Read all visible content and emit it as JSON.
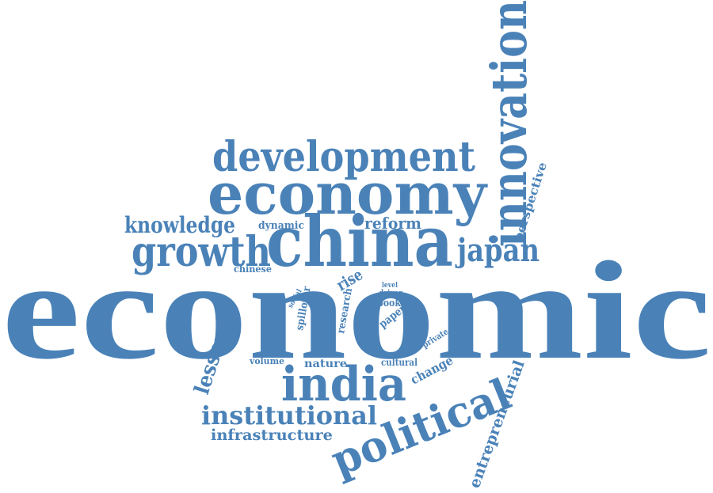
{
  "words": {
    "economic": "economic",
    "innovation": "innovation",
    "development": "development",
    "economy": "economy",
    "china": "china",
    "growth": "growth",
    "knowledge": "knowledge",
    "japan": "japan",
    "reform": "reform",
    "dynamic": "dynamic",
    "perspective": "perspective",
    "chinese": "chinese",
    "rise": "rise",
    "level": "level",
    "driver": "driver",
    "book": "book",
    "paper": "paper",
    "social": "social",
    "spillover": "spillover",
    "research": "research",
    "private": "private",
    "lesson": "lesson",
    "volume": "volume",
    "nature": "nature",
    "cultural": "cultural",
    "change": "change",
    "india": "india",
    "political": "political",
    "institutional": "institutional",
    "infrastructure": "infrastructure",
    "entrepreneurial": "entrepreneurial"
  },
  "colors": {
    "word": "#4a82b8",
    "background": "#ffffff"
  }
}
